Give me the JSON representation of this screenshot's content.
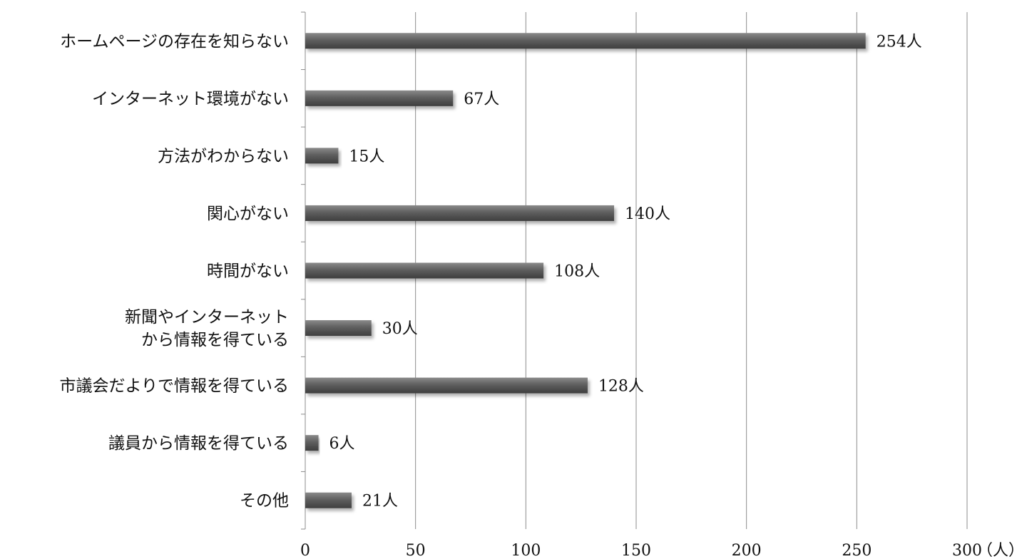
{
  "chart_data": {
    "type": "bar",
    "orientation": "horizontal",
    "categories": [
      [
        "ホームページの存在を知らない"
      ],
      [
        "インターネット環境がない"
      ],
      [
        "方法がわからない"
      ],
      [
        "関心がない"
      ],
      [
        "時間がない"
      ],
      [
        "新聞やインターネット",
        "から情報を得ている"
      ],
      [
        "市議会だよりで情報を得ている"
      ],
      [
        "議員から情報を得ている"
      ],
      [
        "その他"
      ]
    ],
    "values": [
      254,
      67,
      15,
      140,
      108,
      30,
      128,
      6,
      21
    ],
    "value_labels": [
      "254人",
      "67人",
      "15人",
      "140人",
      "108人",
      "30人",
      "128人",
      "6人",
      "21人"
    ],
    "xlim": [
      0,
      300
    ],
    "xticks": [
      0,
      50,
      100,
      150,
      200,
      250,
      300
    ],
    "xlabel": "（人）",
    "grid": true,
    "bar_color": "#5f5f5f"
  }
}
